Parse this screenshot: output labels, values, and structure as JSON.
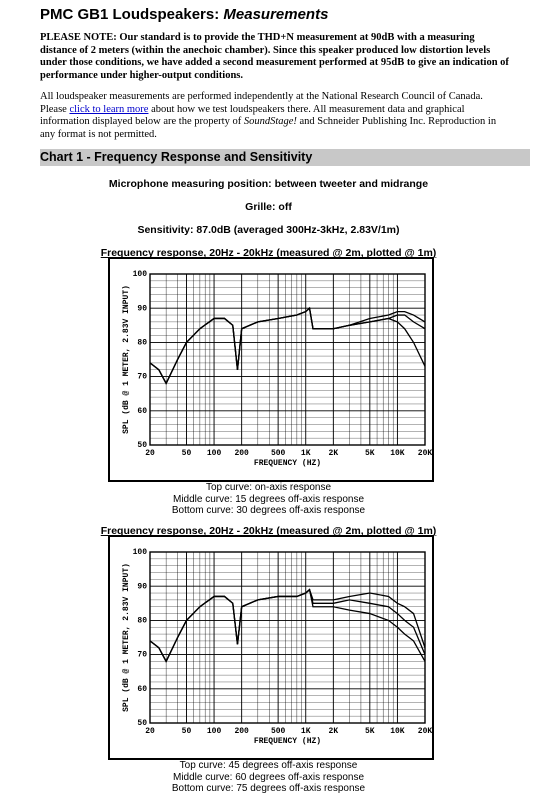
{
  "header": {
    "title": "PMC GB1 Loudspeakers: ",
    "title_italic": "Measurements"
  },
  "note": "PLEASE NOTE: Our standard is to provide the THD+N measurement at 90dB with a measuring distance of 2 meters (within the anechoic chamber). Since this speaker produced low distortion levels under those conditions, we have added a second measurement performed at 95dB to give an indication of performance under higher-output conditions.",
  "intro": {
    "part1": "All  loudspeaker measurements are performed independently at the National Research Council of Canada. Please ",
    "link": "click to learn more",
    "part2": " about how we test loudspeakers there. All measurement data and graphical information displayed below are the property of ",
    "italic": "SoundStage!",
    "part3": " and Schneider Publishing Inc. Reproduction in any format is not permitted."
  },
  "section": "Chart 1 - Frequency Response and Sensitivity",
  "info": [
    "Microphone measuring position: between tweeter and midrange",
    "Grille: off",
    "Sensitivity: 87.0dB (averaged 300Hz-3kHz, 2.83V/1m)"
  ],
  "charts": [
    {
      "type": "line",
      "title": "Frequency response, 20Hz - 20kHz (measured @ 2m, plotted @ 1m)",
      "x_label": "FREQUENCY (HZ)",
      "y_label": "SPL (dB @ 1 METER, 2.83V INPUT)",
      "log_x": true,
      "grid": true,
      "color": "#000000",
      "xlim": [
        20,
        20000
      ],
      "ylim": [
        50,
        100
      ],
      "xticks": [
        20,
        50,
        100,
        200,
        500,
        {
          "value": 1000,
          "label": "1K"
        },
        {
          "value": 2000,
          "label": "2K"
        },
        {
          "value": 5000,
          "label": "5K"
        },
        {
          "value": 10000,
          "label": "10K"
        },
        {
          "value": 20000,
          "label": "20K"
        }
      ],
      "yticks": [
        50,
        60,
        70,
        80,
        90,
        100
      ],
      "x": [
        20,
        25,
        30,
        40,
        50,
        70,
        100,
        130,
        160,
        180,
        200,
        300,
        500,
        800,
        1000,
        1100,
        1200,
        2000,
        3000,
        5000,
        8000,
        10000,
        12000,
        15000,
        20000
      ],
      "series": [
        {
          "name": "Top curve: on-axis response",
          "values": [
            74,
            72,
            68,
            75,
            80,
            84,
            87,
            87,
            85,
            72,
            84,
            86,
            87,
            88,
            89,
            90,
            84,
            84,
            85,
            87,
            88,
            89,
            89,
            88,
            86
          ]
        },
        {
          "name": "Middle curve: 15 degrees off-axis response",
          "values": [
            74,
            72,
            68,
            75,
            80,
            84,
            87,
            87,
            85,
            72,
            84,
            86,
            87,
            88,
            89,
            90,
            84,
            84,
            85,
            86,
            87,
            88,
            88,
            86,
            84
          ]
        },
        {
          "name": "Bottom curve: 30 degrees off-axis response",
          "values": [
            74,
            72,
            68,
            75,
            80,
            84,
            87,
            87,
            85,
            72,
            84,
            86,
            87,
            88,
            89,
            90,
            84,
            84,
            85,
            86,
            87,
            86,
            84,
            80,
            73
          ]
        }
      ]
    },
    {
      "type": "line",
      "title": "Frequency response, 20Hz - 20kHz (measured @ 2m, plotted @ 1m)",
      "x_label": "FREQUENCY (HZ)",
      "y_label": "SPL (dB @ 1 METER, 2.83V INPUT)",
      "log_x": true,
      "grid": true,
      "color": "#000000",
      "xlim": [
        20,
        20000
      ],
      "ylim": [
        50,
        100
      ],
      "xticks": [
        20,
        50,
        100,
        200,
        500,
        {
          "value": 1000,
          "label": "1K"
        },
        {
          "value": 2000,
          "label": "2K"
        },
        {
          "value": 5000,
          "label": "5K"
        },
        {
          "value": 10000,
          "label": "10K"
        },
        {
          "value": 20000,
          "label": "20K"
        }
      ],
      "yticks": [
        50,
        60,
        70,
        80,
        90,
        100
      ],
      "x": [
        20,
        25,
        30,
        40,
        50,
        70,
        100,
        130,
        160,
        180,
        200,
        300,
        500,
        800,
        1000,
        1100,
        1200,
        2000,
        3000,
        5000,
        8000,
        10000,
        12000,
        15000,
        20000
      ],
      "series": [
        {
          "name": "Top curve: 45 degrees off-axis response",
          "values": [
            74,
            72,
            68,
            75,
            80,
            84,
            87,
            87,
            85,
            73,
            84,
            86,
            87,
            87,
            88,
            89,
            86,
            86,
            87,
            88,
            87,
            85,
            84,
            82,
            72
          ]
        },
        {
          "name": "Middle curve: 60 degrees off-axis response",
          "values": [
            74,
            72,
            68,
            75,
            80,
            84,
            87,
            87,
            85,
            73,
            84,
            86,
            87,
            87,
            88,
            89,
            85,
            85,
            86,
            85,
            84,
            82,
            80,
            78,
            70
          ]
        },
        {
          "name": "Bottom curve: 75 degrees off-axis response",
          "values": [
            74,
            72,
            68,
            75,
            80,
            84,
            87,
            87,
            85,
            73,
            84,
            86,
            87,
            87,
            88,
            89,
            84,
            84,
            83,
            82,
            80,
            78,
            76,
            74,
            68
          ]
        }
      ]
    }
  ]
}
